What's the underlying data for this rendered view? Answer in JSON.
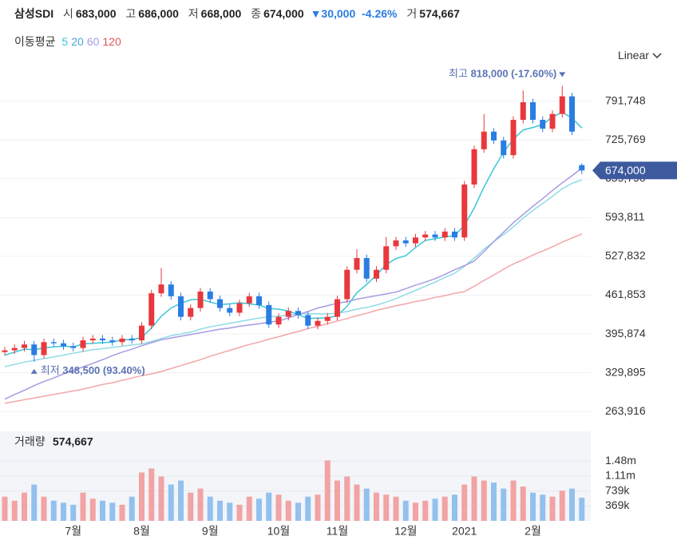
{
  "header": {
    "name": "삼성SDI",
    "quotes": [
      {
        "label": "시",
        "value": "683,000"
      },
      {
        "label": "고",
        "value": "686,000"
      },
      {
        "label": "저",
        "value": "668,000"
      },
      {
        "label": "종",
        "value": "674,000"
      }
    ],
    "change": "▼30,000",
    "change_pct": "-4.26%",
    "volume_label": "거",
    "volume": "574,667"
  },
  "scale_menu": "Linear",
  "chart_data": {
    "type": "candlestick",
    "legend_title": "이동평균",
    "categories": [
      null,
      null,
      null,
      null,
      null,
      null,
      null,
      "7월",
      null,
      null,
      null,
      null,
      null,
      null,
      "8월",
      null,
      null,
      null,
      null,
      null,
      null,
      "9월",
      null,
      null,
      null,
      null,
      null,
      null,
      "10월",
      null,
      null,
      null,
      null,
      null,
      "11월",
      null,
      null,
      null,
      null,
      null,
      null,
      "12월",
      null,
      null,
      null,
      null,
      null,
      "2021",
      null,
      null,
      null,
      null,
      null,
      null,
      "2월",
      null,
      null,
      null,
      null,
      null
    ],
    "open": [
      365000,
      368000,
      372000,
      378000,
      360000,
      382000,
      380000,
      375000,
      372000,
      385000,
      388000,
      385000,
      382000,
      388000,
      385000,
      410000,
      465000,
      480000,
      460000,
      425000,
      440000,
      468000,
      455000,
      440000,
      432000,
      448000,
      460000,
      445000,
      412000,
      425000,
      435000,
      428000,
      410000,
      418000,
      425000,
      455000,
      505000,
      525000,
      490000,
      505000,
      545000,
      555000,
      550000,
      560000,
      565000,
      560000,
      570000,
      560000,
      650000,
      710000,
      740000,
      725000,
      700000,
      760000,
      790000,
      760000,
      745000,
      770000,
      800000,
      683000
    ],
    "high": [
      374000,
      378000,
      384000,
      384000,
      388000,
      388000,
      386000,
      381000,
      391000,
      394000,
      394000,
      391000,
      394000,
      394000,
      416000,
      471000,
      508000,
      486000,
      466000,
      446000,
      474000,
      474000,
      461000,
      446000,
      454000,
      466000,
      466000,
      451000,
      431000,
      441000,
      441000,
      434000,
      424000,
      431000,
      461000,
      511000,
      540000,
      531000,
      511000,
      561000,
      561000,
      561000,
      566000,
      571000,
      571000,
      576000,
      576000,
      656000,
      716000,
      770000,
      746000,
      731000,
      766000,
      810000,
      796000,
      766000,
      776000,
      818000,
      806000,
      686000
    ],
    "low": [
      359000,
      362000,
      366000,
      348500,
      354000,
      374000,
      369000,
      366000,
      366000,
      379000,
      379000,
      376000,
      376000,
      379000,
      379000,
      404000,
      459000,
      454000,
      419000,
      419000,
      434000,
      449000,
      434000,
      426000,
      426000,
      442000,
      439000,
      406000,
      406000,
      419000,
      422000,
      404000,
      404000,
      412000,
      419000,
      449000,
      499000,
      484000,
      484000,
      499000,
      539000,
      544000,
      544000,
      554000,
      554000,
      554000,
      554000,
      554000,
      644000,
      704000,
      719000,
      694000,
      694000,
      754000,
      754000,
      739000,
      739000,
      764000,
      734000,
      668000
    ],
    "close": [
      368000,
      372000,
      378000,
      360000,
      382000,
      380000,
      375000,
      372000,
      385000,
      388000,
      385000,
      382000,
      388000,
      385000,
      410000,
      465000,
      480000,
      460000,
      425000,
      440000,
      468000,
      455000,
      440000,
      432000,
      448000,
      460000,
      445000,
      412000,
      425000,
      435000,
      428000,
      410000,
      418000,
      425000,
      455000,
      505000,
      525000,
      490000,
      505000,
      545000,
      555000,
      550000,
      560000,
      565000,
      560000,
      570000,
      560000,
      650000,
      710000,
      740000,
      725000,
      700000,
      760000,
      790000,
      760000,
      745000,
      770000,
      800000,
      740000,
      674000
    ],
    "up_color": "#e8383d",
    "down_color": "#2a7de1",
    "series": [
      {
        "name": "5",
        "color": "#3ac6d8",
        "values": [
          360000,
          365000,
          370000,
          369000,
          372000,
          374000,
          375000,
          374000,
          379000,
          380000,
          381000,
          382000,
          386000,
          386000,
          390000,
          406000,
          426000,
          440000,
          448000,
          454000,
          455000,
          450000,
          446000,
          447000,
          449000,
          447000,
          445000,
          439000,
          438000,
          435000,
          429000,
          422000,
          423000,
          423000,
          427000,
          443000,
          466000,
          480000,
          496000,
          514000,
          524000,
          529000,
          543000,
          555000,
          558000,
          561000,
          563000,
          581000,
          610000,
          646000,
          677000,
          705000,
          727000,
          743000,
          747000,
          752000,
          765000,
          773000,
          763000,
          746000
        ]
      },
      {
        "name": "20",
        "color": "#8fdbe6",
        "values": [
          340000,
          344000,
          348000,
          351000,
          354000,
          357000,
          360000,
          363000,
          366000,
          369000,
          371000,
          373000,
          375000,
          377000,
          379000,
          383000,
          388000,
          393000,
          396000,
          399000,
          404000,
          408000,
          411000,
          414000,
          417000,
          420000,
          423000,
          425000,
          426000,
          428000,
          430000,
          430000,
          430000,
          430000,
          431000,
          434000,
          438000,
          441000,
          445000,
          450000,
          456000,
          463000,
          470000,
          477000,
          484000,
          492000,
          499000,
          511000,
          525000,
          540000,
          553000,
          565000,
          578000,
          593000,
          606000,
          618000,
          630000,
          643000,
          652000,
          658000
        ]
      },
      {
        "name": "60",
        "color": "#a79be3",
        "values": [
          285000,
          293000,
          300000,
          308000,
          315000,
          321000,
          328000,
          334000,
          340000,
          346000,
          352000,
          359000,
          365000,
          370000,
          376000,
          381000,
          386000,
          389000,
          392000,
          395000,
          398000,
          401000,
          404000,
          406000,
          409000,
          411000,
          413000,
          416000,
          418000,
          423000,
          429000,
          434000,
          440000,
          444000,
          448000,
          451000,
          455000,
          458000,
          461000,
          464000,
          467000,
          473000,
          479000,
          484000,
          490000,
          497000,
          505000,
          512000,
          520000,
          536000,
          553000,
          569000,
          585000,
          599000,
          613000,
          626000,
          640000,
          653000,
          665000,
          678000
        ]
      },
      {
        "name": "120",
        "color": "#f2a6a9",
        "values": [
          278000,
          281000,
          284000,
          287000,
          290000,
          293000,
          296000,
          299000,
          302000,
          306000,
          310000,
          313000,
          317000,
          321000,
          325000,
          328000,
          332000,
          337000,
          342000,
          347000,
          352000,
          358000,
          363000,
          368000,
          373000,
          378000,
          382000,
          387000,
          391000,
          396000,
          400000,
          405000,
          409000,
          413000,
          418000,
          422000,
          427000,
          431000,
          436000,
          440000,
          444000,
          447000,
          451000,
          454000,
          458000,
          461000,
          465000,
          468000,
          477000,
          487000,
          496000,
          506000,
          515000,
          522000,
          530000,
          537000,
          544000,
          552000,
          559000,
          566000
        ]
      }
    ],
    "ylim": [
      236986,
      841568
    ],
    "yticks": [
      {
        "value": 263916,
        "label": "263,916"
      },
      {
        "value": 329895,
        "label": "329,895"
      },
      {
        "value": 395874,
        "label": "395,874"
      },
      {
        "value": 461853,
        "label": "461,853"
      },
      {
        "value": 527832,
        "label": "527,832"
      },
      {
        "value": 593811,
        "label": "593,811"
      },
      {
        "value": 659790,
        "label": "659,790"
      },
      {
        "value": 725769,
        "label": "725,769"
      },
      {
        "value": 791748,
        "label": "791,748"
      }
    ],
    "grid": true,
    "last_label": "674,000",
    "annotations": {
      "max_label": "최고",
      "max_value": "818,000 (-17.60%)",
      "min_label": "최저",
      "min_value": "348,500 (93.40%)"
    },
    "volume": {
      "title": "거래량",
      "value_label": "574,667",
      "values": [
        600000,
        500000,
        700000,
        900000,
        600000,
        500000,
        450000,
        400000,
        700000,
        550000,
        500000,
        450000,
        400000,
        600000,
        1200000,
        1300000,
        1100000,
        900000,
        1000000,
        700000,
        800000,
        600000,
        500000,
        450000,
        400000,
        600000,
        550000,
        700000,
        650000,
        500000,
        450000,
        600000,
        650000,
        1500000,
        1000000,
        1100000,
        900000,
        800000,
        700000,
        650000,
        600000,
        500000,
        450000,
        500000,
        550000,
        600000,
        650000,
        900000,
        1100000,
        1000000,
        950000,
        800000,
        1000000,
        850000,
        700000,
        650000,
        600000,
        750000,
        800000,
        574667
      ],
      "ylim": [
        0,
        2220000
      ],
      "yticks": [
        {
          "value": 369000,
          "label": "369k"
        },
        {
          "value": 739000,
          "label": "739k"
        },
        {
          "value": 1110000,
          "label": "1.11m"
        },
        {
          "value": 1480000,
          "label": "1.48m"
        }
      ]
    }
  }
}
